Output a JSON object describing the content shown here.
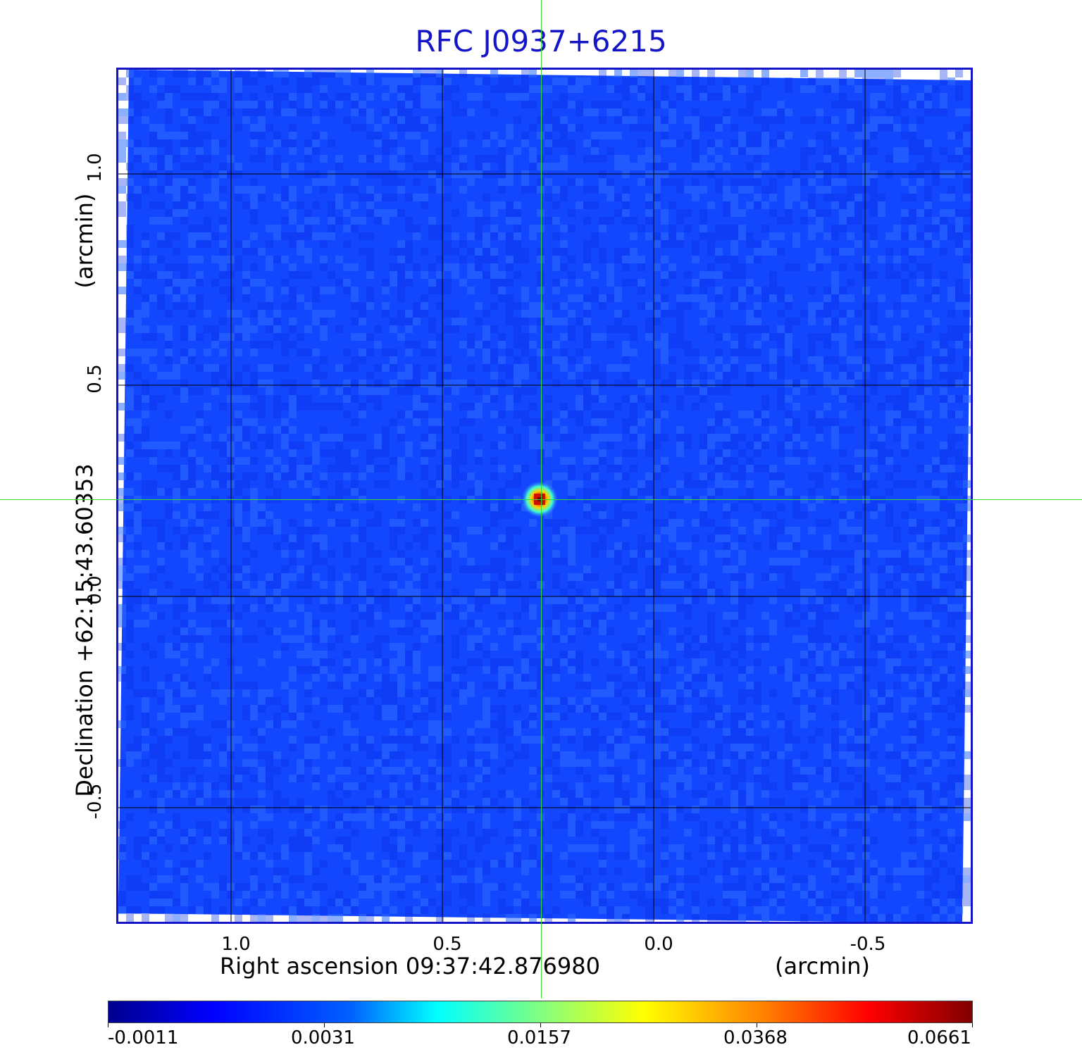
{
  "title": "RFC J0937+6215",
  "colors": {
    "title": "#1515c8",
    "frame": "#1515c8",
    "background_field": "#1346ff",
    "crosshair": "#33dd33",
    "grid": "#000000"
  },
  "x_axis": {
    "label": "Right ascension  09:37:42.876980",
    "unit": "(arcmin)",
    "ticks": [
      "1.0",
      "0.5",
      "0.0",
      "-0.5"
    ]
  },
  "y_axis": {
    "label": "Declination  +62:15:43.60353",
    "unit": "(arcmin)",
    "ticks": [
      "1.0",
      "0.5",
      "0.0",
      "-0.5"
    ]
  },
  "colorbar": {
    "colormap": "jet",
    "ticks": [
      "-0.0011",
      "0.0031",
      "0.0157",
      "0.0368",
      "0.0661"
    ]
  },
  "source": {
    "x_offset_arcmin": 0.27,
    "y_offset_arcmin": 0.23
  }
}
